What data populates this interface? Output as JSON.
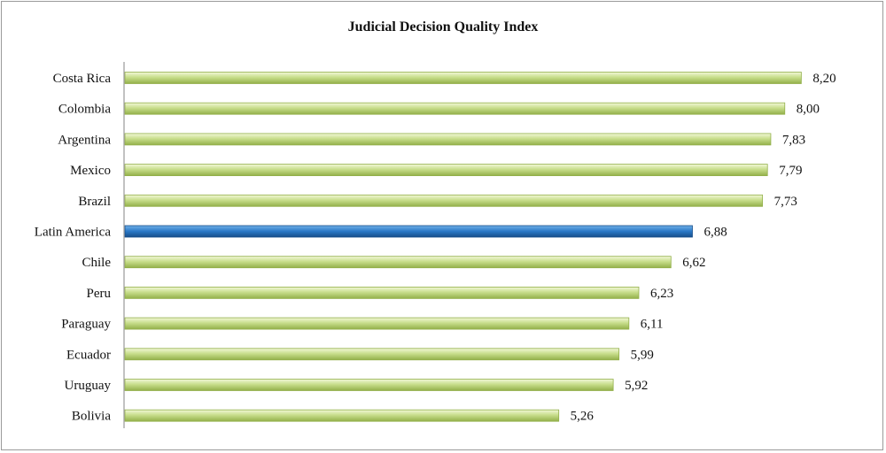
{
  "chart_data": {
    "type": "bar",
    "orientation": "horizontal",
    "title": "Judicial Decision Quality Index",
    "xlabel": "",
    "ylabel": "",
    "xlim": [
      0,
      8.4
    ],
    "grid": false,
    "legend": "none",
    "categories": [
      "Costa Rica",
      "Colombia",
      "Argentina",
      "Mexico",
      "Brazil",
      "Latin America",
      "Chile",
      "Peru",
      "Paraguay",
      "Ecuador",
      "Uruguay",
      "Bolivia"
    ],
    "values": [
      8.2,
      8.0,
      7.83,
      7.79,
      7.73,
      6.88,
      6.62,
      6.23,
      6.11,
      5.99,
      5.92,
      5.26
    ],
    "value_labels": [
      "8,20",
      "8,00",
      "7,83",
      "7,79",
      "7,73",
      "6,88",
      "6,62",
      "6,23",
      "6,11",
      "5,99",
      "5,92",
      "5,26"
    ],
    "highlighted_category": "Latin America",
    "colors": {
      "bar_light": "#f2f8d8",
      "bar_mid": "#c8de8c",
      "bar_dark": "#93b04a",
      "highlight_light": "#6fb0e8",
      "highlight_mid": "#2a78c6",
      "highlight_dark": "#174e8a",
      "axis": "#9a9a9a"
    }
  }
}
